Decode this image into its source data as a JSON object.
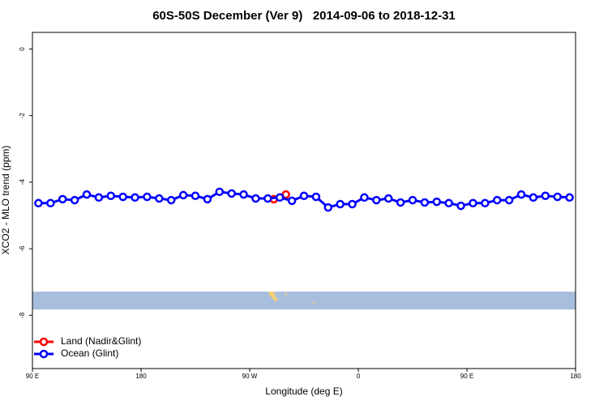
{
  "chart_data": {
    "type": "line",
    "title": "60S-50S December (Ver 9)   2014-09-06 to 2018-12-31",
    "x_label": "Longitude (deg E)",
    "y_label": "XCO2 - MLO trend (ppm)",
    "xlim": [
      90,
      540
    ],
    "xticks": [
      {
        "value": 90,
        "label": "90 E"
      },
      180,
      {
        "value": 270,
        "label": "90 W"
      },
      {
        "value": 360,
        "label": "0"
      },
      {
        "value": 450,
        "label": "90 E"
      },
      {
        "value": 540,
        "label": "180"
      }
    ],
    "ylim": [
      -9.6,
      0.5
    ],
    "yticks": [
      0,
      -2,
      -4,
      -6,
      -8
    ],
    "legend": "bottom-left",
    "series": [
      {
        "name": "Land (Nadir&Glint)",
        "color": "#ff0000",
        "x": [
          290,
          300
        ],
        "values": [
          -4.51,
          -4.37
        ]
      },
      {
        "name": "Ocean (Glint)",
        "color": "#0000ff",
        "x": [
          95,
          105,
          115,
          125,
          135,
          145,
          155,
          165,
          175,
          185,
          195,
          205,
          215,
          225,
          235,
          245,
          255,
          265,
          275,
          285,
          295,
          305,
          315,
          325,
          335,
          345,
          355,
          365,
          375,
          385,
          395,
          405,
          415,
          425,
          435,
          445,
          455,
          465,
          475,
          485,
          495,
          505,
          515,
          525,
          535
        ],
        "values": [
          -4.63,
          -4.63,
          -4.51,
          -4.54,
          -4.37,
          -4.46,
          -4.41,
          -4.44,
          -4.46,
          -4.44,
          -4.49,
          -4.54,
          -4.39,
          -4.41,
          -4.51,
          -4.29,
          -4.34,
          -4.37,
          -4.49,
          -4.49,
          -4.46,
          -4.56,
          -4.41,
          -4.44,
          -4.76,
          -4.66,
          -4.66,
          -4.46,
          -4.54,
          -4.49,
          -4.61,
          -4.54,
          -4.61,
          -4.59,
          -4.63,
          -4.71,
          -4.63,
          -4.63,
          -4.54,
          -4.54,
          -4.37,
          -4.46,
          -4.41,
          -4.44,
          -4.46
        ]
      }
    ]
  }
}
